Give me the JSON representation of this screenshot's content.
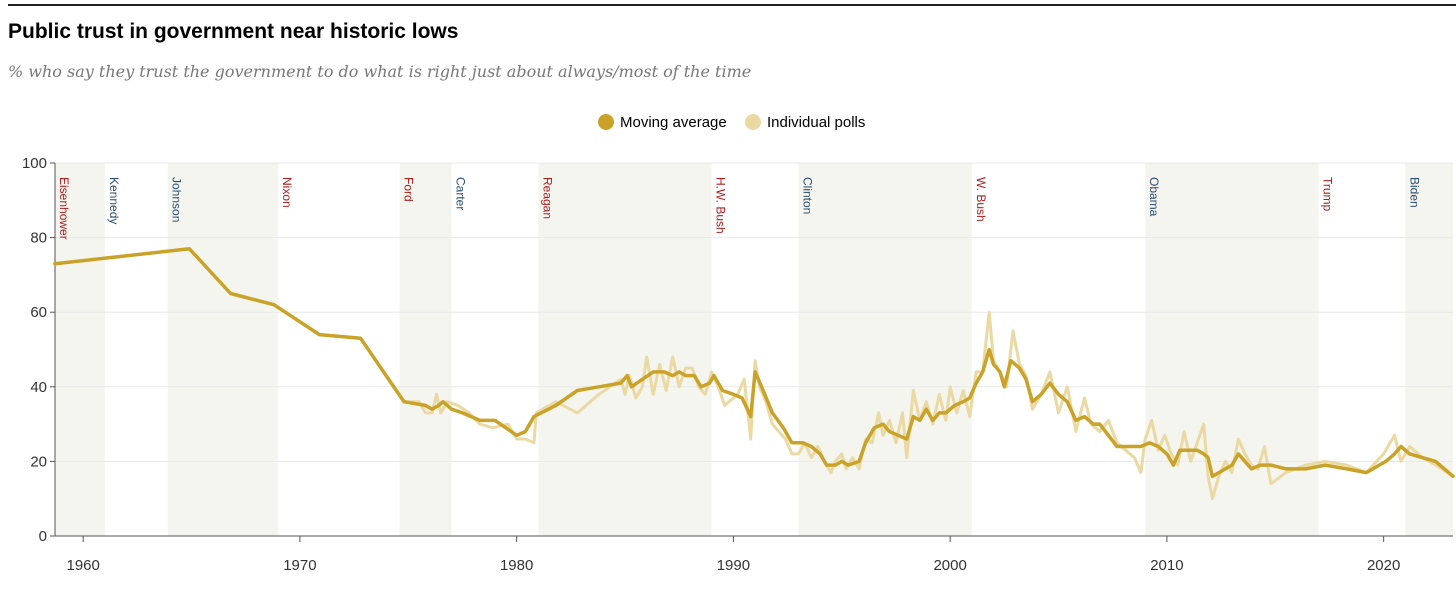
{
  "chart_data": {
    "type": "line",
    "title": "Public trust in government near historic lows",
    "subtitle": "% who say they trust the government to do what is right just about always/most of the time",
    "xlim": [
      1958.7,
      2023.2
    ],
    "ylim": [
      0,
      100
    ],
    "x_ticks": [
      1960,
      1970,
      1980,
      1990,
      2000,
      2010,
      2020
    ],
    "x_tick_labels": [
      "1960",
      "1970",
      "1980",
      "1990",
      "2000",
      "2010",
      "2020"
    ],
    "y_ticks": [
      0,
      20,
      40,
      60,
      80,
      100
    ],
    "y_tick_labels": [
      "0",
      "20",
      "40",
      "60",
      "80",
      "100"
    ],
    "grid": true,
    "legend": {
      "position": "top-center",
      "entries": [
        {
          "label": "Moving average",
          "color": "#c9a227"
        },
        {
          "label": "Individual polls",
          "color": "#ead9a3"
        }
      ]
    },
    "presidents": [
      {
        "name": "Eisenhower",
        "start": 1958.7,
        "end": 1961.0,
        "party_color": "#b01c1c",
        "shaded": true
      },
      {
        "name": "Kennedy",
        "start": 1961.0,
        "end": 1963.9,
        "party_color": "#2b4d6e",
        "shaded": false
      },
      {
        "name": "Johnson",
        "start": 1963.9,
        "end": 1969.0,
        "party_color": "#2b4d6e",
        "shaded": true
      },
      {
        "name": "Nixon",
        "start": 1969.0,
        "end": 1974.6,
        "party_color": "#b01c1c",
        "shaded": false
      },
      {
        "name": "Ford",
        "start": 1974.6,
        "end": 1977.0,
        "party_color": "#b01c1c",
        "shaded": true
      },
      {
        "name": "Carter",
        "start": 1977.0,
        "end": 1981.0,
        "party_color": "#2b4d6e",
        "shaded": false
      },
      {
        "name": "Reagan",
        "start": 1981.0,
        "end": 1989.0,
        "party_color": "#b01c1c",
        "shaded": true
      },
      {
        "name": "H.W. Bush",
        "start": 1989.0,
        "end": 1993.0,
        "party_color": "#b01c1c",
        "shaded": false
      },
      {
        "name": "Clinton",
        "start": 1993.0,
        "end": 2001.0,
        "party_color": "#2b4d6e",
        "shaded": true
      },
      {
        "name": "W. Bush",
        "start": 2001.0,
        "end": 2009.0,
        "party_color": "#b01c1c",
        "shaded": false
      },
      {
        "name": "Obama",
        "start": 2009.0,
        "end": 2017.0,
        "party_color": "#2b4d6e",
        "shaded": true
      },
      {
        "name": "Trump",
        "start": 2017.0,
        "end": 2021.0,
        "party_color": "#b01c1c",
        "shaded": false
      },
      {
        "name": "Biden",
        "start": 2021.0,
        "end": 2023.2,
        "party_color": "#2b4d6e",
        "shaded": true
      }
    ],
    "series": [
      {
        "name": "Individual polls",
        "color": "#ead9a3",
        "points": [
          [
            1958.7,
            73
          ],
          [
            1964.9,
            77
          ],
          [
            1966.8,
            65
          ],
          [
            1968.8,
            62
          ],
          [
            1970.9,
            54
          ],
          [
            1972.8,
            53
          ],
          [
            1974.8,
            36
          ],
          [
            1975.5,
            36
          ],
          [
            1975.8,
            33
          ],
          [
            1976.1,
            33
          ],
          [
            1976.3,
            38
          ],
          [
            1976.5,
            33
          ],
          [
            1976.8,
            36
          ],
          [
            1977.3,
            35
          ],
          [
            1977.8,
            33
          ],
          [
            1978.3,
            30
          ],
          [
            1978.9,
            29
          ],
          [
            1979.6,
            30
          ],
          [
            1980.0,
            26
          ],
          [
            1980.4,
            26
          ],
          [
            1980.8,
            25
          ],
          [
            1980.9,
            33
          ],
          [
            1981.8,
            36
          ],
          [
            1982.8,
            33
          ],
          [
            1983.8,
            38
          ],
          [
            1984.8,
            42
          ],
          [
            1985.0,
            38
          ],
          [
            1985.2,
            43
          ],
          [
            1985.5,
            37
          ],
          [
            1985.8,
            40
          ],
          [
            1986.0,
            48
          ],
          [
            1986.3,
            38
          ],
          [
            1986.6,
            46
          ],
          [
            1986.9,
            39
          ],
          [
            1987.2,
            48
          ],
          [
            1987.5,
            40
          ],
          [
            1987.8,
            45
          ],
          [
            1988.1,
            45
          ],
          [
            1988.4,
            40
          ],
          [
            1988.7,
            38
          ],
          [
            1989.0,
            44
          ],
          [
            1989.3,
            40
          ],
          [
            1989.6,
            35
          ],
          [
            1990.2,
            38
          ],
          [
            1990.5,
            42
          ],
          [
            1990.8,
            26
          ],
          [
            1991.0,
            47
          ],
          [
            1991.2,
            40
          ],
          [
            1991.5,
            36
          ],
          [
            1991.8,
            30
          ],
          [
            1992.1,
            28
          ],
          [
            1992.4,
            26
          ],
          [
            1992.7,
            22
          ],
          [
            1993.0,
            22
          ],
          [
            1993.3,
            25
          ],
          [
            1993.6,
            21
          ],
          [
            1993.9,
            24
          ],
          [
            1994.2,
            20
          ],
          [
            1994.5,
            17
          ],
          [
            1994.7,
            20
          ],
          [
            1995.0,
            22
          ],
          [
            1995.2,
            18
          ],
          [
            1995.5,
            21
          ],
          [
            1995.8,
            18
          ],
          [
            1996.1,
            26
          ],
          [
            1996.4,
            25
          ],
          [
            1996.7,
            33
          ],
          [
            1996.9,
            27
          ],
          [
            1997.2,
            31
          ],
          [
            1997.5,
            25
          ],
          [
            1997.8,
            33
          ],
          [
            1998.0,
            21
          ],
          [
            1998.3,
            39
          ],
          [
            1998.6,
            31
          ],
          [
            1998.9,
            36
          ],
          [
            1999.2,
            30
          ],
          [
            1999.5,
            38
          ],
          [
            1999.8,
            31
          ],
          [
            2000.0,
            40
          ],
          [
            2000.3,
            33
          ],
          [
            2000.6,
            39
          ],
          [
            2000.9,
            32
          ],
          [
            2001.2,
            44
          ],
          [
            2001.5,
            44
          ],
          [
            2001.8,
            60
          ],
          [
            2002.0,
            47
          ],
          [
            2002.3,
            44
          ],
          [
            2002.6,
            40
          ],
          [
            2002.9,
            55
          ],
          [
            2003.2,
            46
          ],
          [
            2003.5,
            43
          ],
          [
            2003.8,
            34
          ],
          [
            2004.2,
            38
          ],
          [
            2004.6,
            44
          ],
          [
            2005.0,
            33
          ],
          [
            2005.4,
            40
          ],
          [
            2005.8,
            28
          ],
          [
            2006.2,
            37
          ],
          [
            2006.5,
            30
          ],
          [
            2006.9,
            28
          ],
          [
            2007.3,
            31
          ],
          [
            2007.7,
            25
          ],
          [
            2008.1,
            23
          ],
          [
            2008.5,
            21
          ],
          [
            2008.8,
            17
          ],
          [
            2009.0,
            26
          ],
          [
            2009.3,
            31
          ],
          [
            2009.6,
            23
          ],
          [
            2009.9,
            27
          ],
          [
            2010.2,
            22
          ],
          [
            2010.5,
            19
          ],
          [
            2010.8,
            28
          ],
          [
            2011.1,
            20
          ],
          [
            2011.4,
            25
          ],
          [
            2011.7,
            30
          ],
          [
            2011.9,
            16
          ],
          [
            2012.1,
            10
          ],
          [
            2012.4,
            16
          ],
          [
            2012.7,
            20
          ],
          [
            2013.0,
            17
          ],
          [
            2013.3,
            26
          ],
          [
            2013.6,
            22
          ],
          [
            2013.9,
            19
          ],
          [
            2014.2,
            18
          ],
          [
            2014.5,
            24
          ],
          [
            2014.8,
            14
          ],
          [
            2015.5,
            17
          ],
          [
            2016.4,
            19
          ],
          [
            2017.3,
            20
          ],
          [
            2018.3,
            19
          ],
          [
            2019.2,
            17
          ],
          [
            2020.0,
            22
          ],
          [
            2020.5,
            27
          ],
          [
            2020.8,
            20
          ],
          [
            2021.2,
            24
          ],
          [
            2021.8,
            21
          ],
          [
            2022.4,
            19
          ],
          [
            2023.2,
            16
          ]
        ]
      },
      {
        "name": "Moving average",
        "color": "#c9a227",
        "points": [
          [
            1958.7,
            73
          ],
          [
            1964.9,
            77
          ],
          [
            1966.8,
            65
          ],
          [
            1968.8,
            62
          ],
          [
            1970.9,
            54
          ],
          [
            1972.8,
            53
          ],
          [
            1974.8,
            36
          ],
          [
            1975.8,
            35
          ],
          [
            1976.1,
            34
          ],
          [
            1976.4,
            35
          ],
          [
            1976.6,
            36
          ],
          [
            1977.0,
            34
          ],
          [
            1977.5,
            33
          ],
          [
            1978.3,
            31
          ],
          [
            1979.0,
            31
          ],
          [
            1980.0,
            27
          ],
          [
            1980.4,
            28
          ],
          [
            1980.8,
            32
          ],
          [
            1981.8,
            35
          ],
          [
            1982.8,
            39
          ],
          [
            1983.8,
            40
          ],
          [
            1984.8,
            41
          ],
          [
            1985.1,
            43
          ],
          [
            1985.3,
            40
          ],
          [
            1985.8,
            42
          ],
          [
            1986.3,
            44
          ],
          [
            1986.8,
            44
          ],
          [
            1987.2,
            43
          ],
          [
            1987.5,
            44
          ],
          [
            1987.8,
            43
          ],
          [
            1988.2,
            43
          ],
          [
            1988.5,
            40
          ],
          [
            1988.9,
            41
          ],
          [
            1989.1,
            43
          ],
          [
            1989.5,
            39
          ],
          [
            1990.0,
            38
          ],
          [
            1990.4,
            37
          ],
          [
            1990.8,
            32
          ],
          [
            1991.0,
            44
          ],
          [
            1991.3,
            40
          ],
          [
            1991.8,
            33
          ],
          [
            1992.3,
            29
          ],
          [
            1992.7,
            25
          ],
          [
            1993.2,
            25
          ],
          [
            1993.6,
            24
          ],
          [
            1994.0,
            22
          ],
          [
            1994.3,
            19
          ],
          [
            1994.7,
            19
          ],
          [
            1995.0,
            20
          ],
          [
            1995.3,
            19
          ],
          [
            1995.8,
            20
          ],
          [
            1996.1,
            25
          ],
          [
            1996.5,
            29
          ],
          [
            1996.9,
            30
          ],
          [
            1997.2,
            28
          ],
          [
            1997.6,
            27
          ],
          [
            1998.0,
            26
          ],
          [
            1998.3,
            32
          ],
          [
            1998.6,
            31
          ],
          [
            1998.9,
            34
          ],
          [
            1999.2,
            31
          ],
          [
            1999.5,
            33
          ],
          [
            1999.8,
            33
          ],
          [
            2000.2,
            35
          ],
          [
            2000.6,
            36
          ],
          [
            2000.9,
            37
          ],
          [
            2001.2,
            41
          ],
          [
            2001.5,
            44
          ],
          [
            2001.8,
            50
          ],
          [
            2002.0,
            46
          ],
          [
            2002.3,
            44
          ],
          [
            2002.5,
            40
          ],
          [
            2002.8,
            47
          ],
          [
            2003.2,
            45
          ],
          [
            2003.5,
            42
          ],
          [
            2003.8,
            36
          ],
          [
            2004.2,
            38
          ],
          [
            2004.6,
            41
          ],
          [
            2005.0,
            38
          ],
          [
            2005.4,
            36
          ],
          [
            2005.8,
            31
          ],
          [
            2006.2,
            32
          ],
          [
            2006.6,
            30
          ],
          [
            2006.9,
            30
          ],
          [
            2007.3,
            27
          ],
          [
            2007.7,
            24
          ],
          [
            2008.1,
            24
          ],
          [
            2008.5,
            24
          ],
          [
            2008.8,
            24
          ],
          [
            2009.2,
            25
          ],
          [
            2009.6,
            24
          ],
          [
            2010.0,
            22
          ],
          [
            2010.3,
            19
          ],
          [
            2010.6,
            23
          ],
          [
            2011.0,
            23
          ],
          [
            2011.4,
            23
          ],
          [
            2011.7,
            22
          ],
          [
            2011.9,
            21
          ],
          [
            2012.1,
            16
          ],
          [
            2012.4,
            17
          ],
          [
            2012.7,
            18
          ],
          [
            2013.0,
            19
          ],
          [
            2013.3,
            22
          ],
          [
            2013.6,
            20
          ],
          [
            2013.9,
            18
          ],
          [
            2014.3,
            19
          ],
          [
            2014.8,
            19
          ],
          [
            2015.5,
            18
          ],
          [
            2016.4,
            18
          ],
          [
            2017.3,
            19
          ],
          [
            2018.3,
            18
          ],
          [
            2019.2,
            17
          ],
          [
            2020.1,
            20
          ],
          [
            2020.5,
            22
          ],
          [
            2020.8,
            24
          ],
          [
            2021.2,
            22
          ],
          [
            2021.8,
            21
          ],
          [
            2022.4,
            20
          ],
          [
            2023.2,
            16
          ]
        ]
      }
    ]
  }
}
